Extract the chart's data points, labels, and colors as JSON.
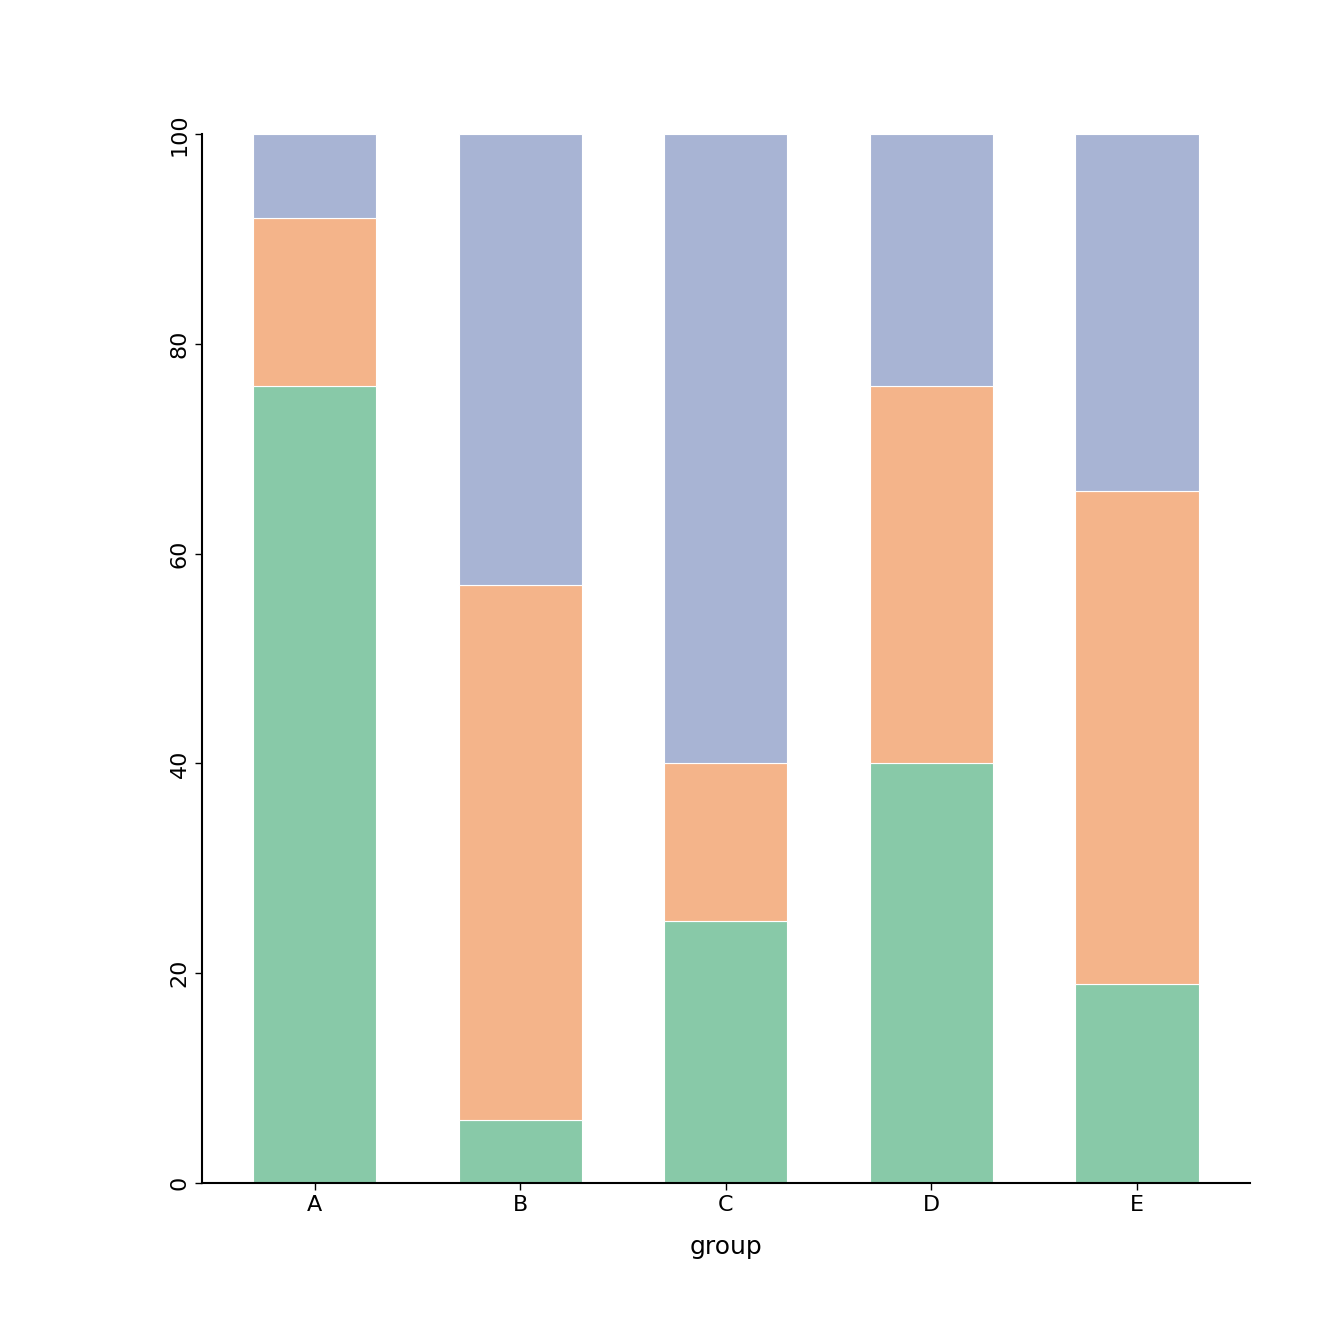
{
  "categories": [
    "A",
    "B",
    "C",
    "D",
    "E"
  ],
  "green": [
    76,
    6,
    25,
    40,
    19
  ],
  "orange": [
    16,
    51,
    15,
    36,
    47
  ],
  "blue": [
    8,
    43,
    60,
    24,
    34
  ],
  "colors": {
    "green": "#88c9a8",
    "orange": "#f4b48a",
    "blue": "#a8b4d4"
  },
  "xlabel": "group",
  "ylim": [
    0,
    100
  ],
  "yticks": [
    0,
    20,
    40,
    60,
    80,
    100
  ],
  "bar_width": 0.6,
  "background_color": "#ffffff",
  "xlabel_fontsize": 18,
  "tick_fontsize": 16,
  "spine_linewidth": 1.5
}
